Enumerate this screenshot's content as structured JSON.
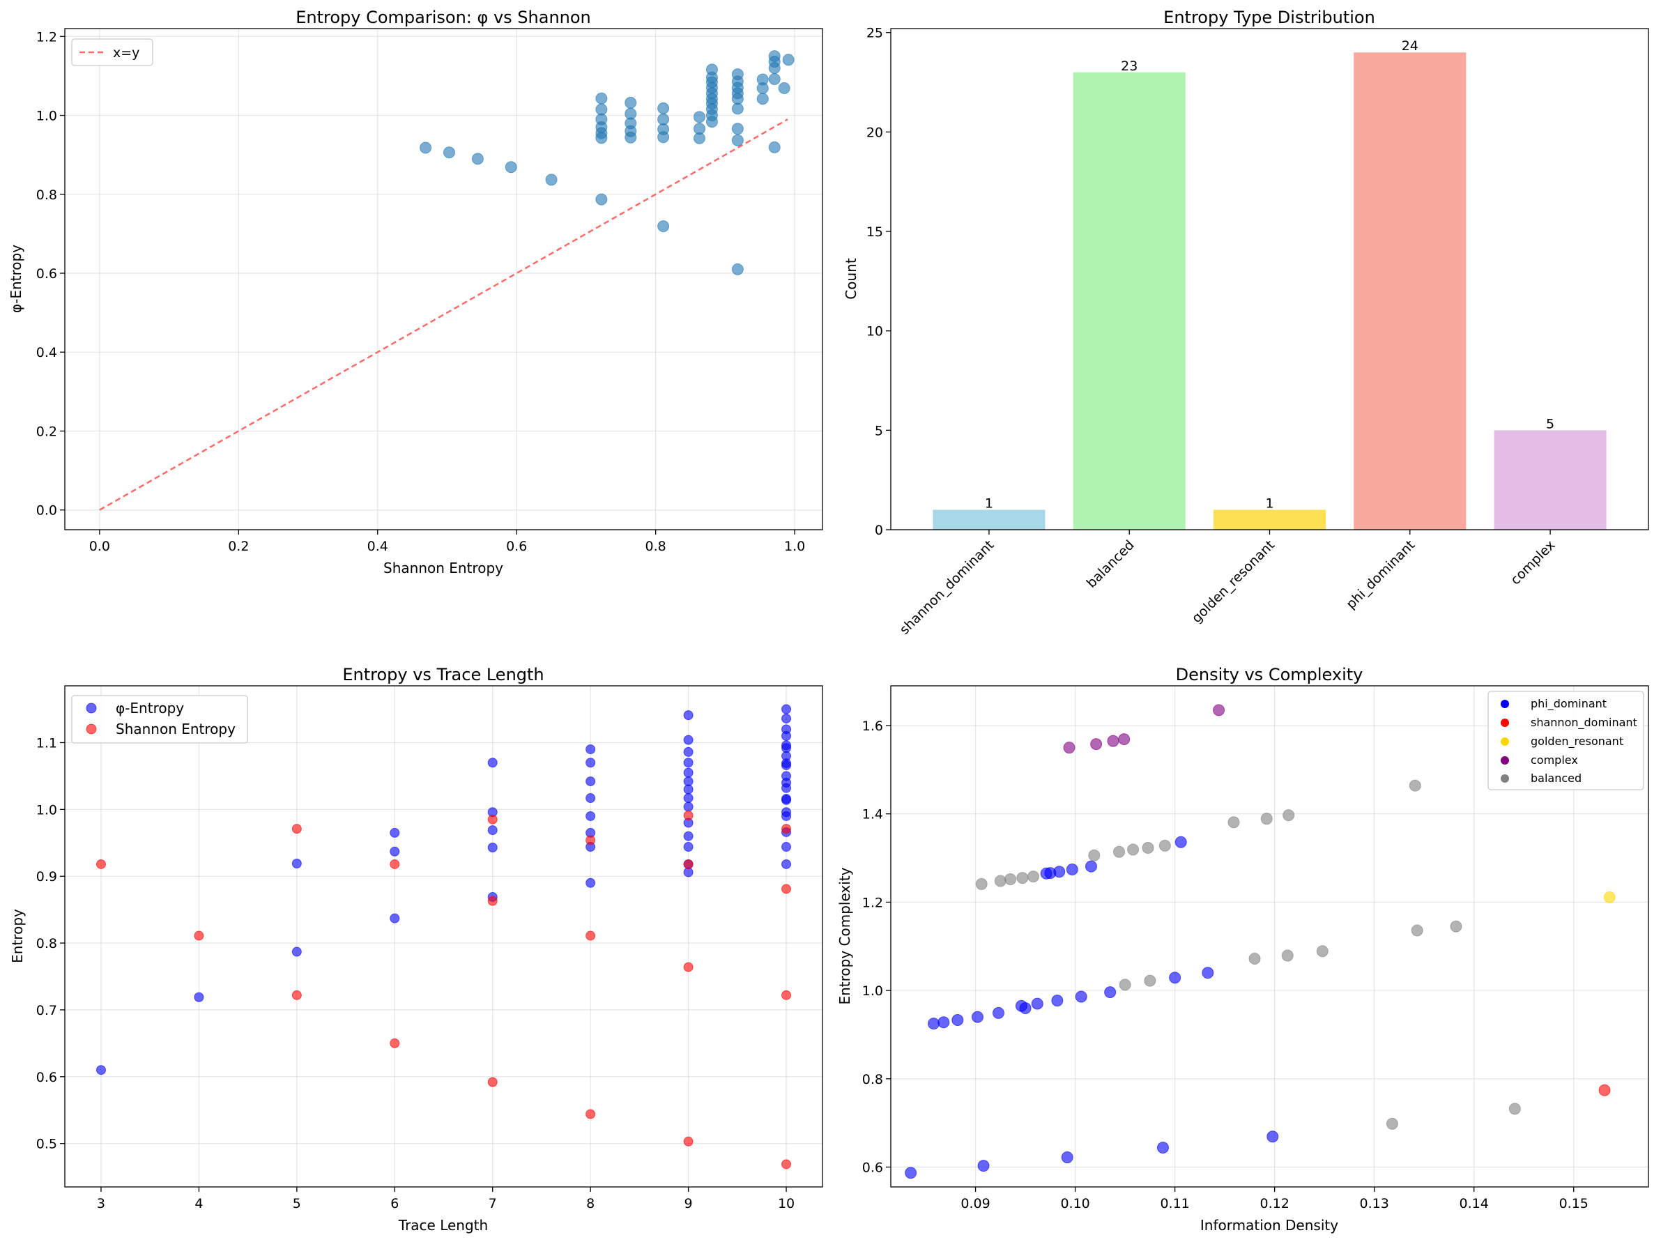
{
  "chart_data": [
    {
      "type": "scatter",
      "title": "Entropy Comparison: φ vs Shannon",
      "xlabel": "Shannon Entropy",
      "ylabel": "φ-Entropy",
      "xlim": [
        -0.05,
        1.04
      ],
      "ylim": [
        -0.05,
        1.22
      ],
      "xticks": [
        0.0,
        0.2,
        0.4,
        0.6,
        0.8,
        1.0
      ],
      "xtick_labels": [
        "0.0",
        "0.2",
        "0.4",
        "0.6",
        "0.8",
        "1.0"
      ],
      "yticks": [
        0.0,
        0.2,
        0.4,
        0.6,
        0.8,
        1.0,
        1.2
      ],
      "ytick_labels": [
        "0.0",
        "0.2",
        "0.4",
        "0.6",
        "0.8",
        "1.0",
        "1.2"
      ],
      "grid": true,
      "legend": [
        "x=y"
      ],
      "legend_loc": "upper-left",
      "colors": {
        "points": "#1f77b4",
        "reference": "#ff6b6b"
      },
      "reference_line": {
        "name": "x=y",
        "x": [
          0.0,
          0.99
        ],
        "y": [
          0.0,
          0.99
        ]
      },
      "points": [
        [
          0.469,
          0.918
        ],
        [
          0.503,
          0.906
        ],
        [
          0.544,
          0.89
        ],
        [
          0.592,
          0.869
        ],
        [
          0.65,
          0.837
        ],
        [
          0.722,
          1.043
        ],
        [
          0.722,
          1.015
        ],
        [
          0.722,
          0.99
        ],
        [
          0.722,
          0.97
        ],
        [
          0.722,
          0.955
        ],
        [
          0.722,
          0.943
        ],
        [
          0.722,
          0.787
        ],
        [
          0.764,
          1.032
        ],
        [
          0.764,
          1.004
        ],
        [
          0.764,
          0.98
        ],
        [
          0.764,
          0.96
        ],
        [
          0.764,
          0.944
        ],
        [
          0.811,
          1.018
        ],
        [
          0.811,
          0.99
        ],
        [
          0.811,
          0.965
        ],
        [
          0.811,
          0.945
        ],
        [
          0.811,
          0.719
        ],
        [
          0.863,
          0.996
        ],
        [
          0.863,
          0.966
        ],
        [
          0.863,
          0.942
        ],
        [
          0.881,
          1.116
        ],
        [
          0.881,
          1.096
        ],
        [
          0.881,
          1.084
        ],
        [
          0.881,
          1.07
        ],
        [
          0.881,
          1.056
        ],
        [
          0.881,
          1.042
        ],
        [
          0.881,
          1.03
        ],
        [
          0.881,
          1.016
        ],
        [
          0.881,
          1.0
        ],
        [
          0.881,
          0.984
        ],
        [
          0.918,
          1.104
        ],
        [
          0.918,
          1.086
        ],
        [
          0.918,
          1.07
        ],
        [
          0.918,
          1.056
        ],
        [
          0.918,
          1.042
        ],
        [
          0.918,
          1.017
        ],
        [
          0.918,
          0.966
        ],
        [
          0.918,
          0.937
        ],
        [
          0.918,
          0.61
        ],
        [
          0.954,
          1.091
        ],
        [
          0.954,
          1.069
        ],
        [
          0.954,
          1.042
        ],
        [
          0.971,
          1.15
        ],
        [
          0.971,
          1.136
        ],
        [
          0.971,
          1.12
        ],
        [
          0.971,
          1.092
        ],
        [
          0.971,
          0.919
        ],
        [
          0.985,
          1.069
        ],
        [
          0.991,
          1.141
        ]
      ]
    },
    {
      "type": "bar",
      "title": "Entropy Type Distribution",
      "xlabel": "",
      "ylabel": "Count",
      "ylim": [
        0,
        25.2
      ],
      "yticks": [
        0,
        5,
        10,
        15,
        20,
        25
      ],
      "ytick_labels": [
        "0",
        "5",
        "10",
        "15",
        "20",
        "25"
      ],
      "grid": false,
      "categories": [
        "shannon_dominant",
        "balanced",
        "golden_resonant",
        "phi_dominant",
        "complex"
      ],
      "values": [
        1,
        23,
        1,
        24,
        5
      ],
      "data_labels": [
        "1",
        "23",
        "1",
        "24",
        "5"
      ],
      "colors": [
        "#a6d8ea",
        "#b0f2b0",
        "#fde053",
        "#f8a89d",
        "#e4bde6"
      ]
    },
    {
      "type": "scatter",
      "title": "Entropy vs Trace Length",
      "xlabel": "Trace Length",
      "ylabel": "Entropy",
      "xlim": [
        2.63,
        10.37
      ],
      "ylim": [
        0.435,
        1.185
      ],
      "xticks": [
        3,
        4,
        5,
        6,
        7,
        8,
        9,
        10
      ],
      "xtick_labels": [
        "3",
        "4",
        "5",
        "6",
        "7",
        "8",
        "9",
        "10"
      ],
      "yticks": [
        0.5,
        0.6,
        0.7,
        0.8,
        0.9,
        1.0,
        1.1
      ],
      "ytick_labels": [
        "0.5",
        "0.6",
        "0.7",
        "0.8",
        "0.9",
        "1.0",
        "1.1"
      ],
      "grid": true,
      "legend_loc": "upper-left",
      "series": [
        {
          "name": "φ-Entropy",
          "color": "#0000ff",
          "points": [
            [
              3,
              0.61
            ],
            [
              4,
              0.719
            ],
            [
              5,
              0.919
            ],
            [
              5,
              0.787
            ],
            [
              6,
              0.965
            ],
            [
              6,
              0.937
            ],
            [
              6,
              0.837
            ],
            [
              7,
              1.07
            ],
            [
              7,
              0.996
            ],
            [
              7,
              0.969
            ],
            [
              7,
              0.943
            ],
            [
              7,
              0.869
            ],
            [
              8,
              1.09
            ],
            [
              8,
              1.07
            ],
            [
              8,
              1.042
            ],
            [
              8,
              1.017
            ],
            [
              8,
              0.99
            ],
            [
              8,
              0.965
            ],
            [
              8,
              0.944
            ],
            [
              8,
              0.89
            ],
            [
              9,
              1.141
            ],
            [
              9,
              1.104
            ],
            [
              9,
              1.086
            ],
            [
              9,
              1.07
            ],
            [
              9,
              1.055
            ],
            [
              9,
              1.042
            ],
            [
              9,
              1.03
            ],
            [
              9,
              1.017
            ],
            [
              9,
              1.004
            ],
            [
              9,
              0.98
            ],
            [
              9,
              0.96
            ],
            [
              9,
              0.944
            ],
            [
              9,
              0.918
            ],
            [
              9,
              0.906
            ],
            [
              10,
              1.15
            ],
            [
              10,
              1.136
            ],
            [
              10,
              1.12
            ],
            [
              10,
              1.11
            ],
            [
              10,
              1.096
            ],
            [
              10,
              1.092
            ],
            [
              10,
              1.08
            ],
            [
              10,
              1.069
            ],
            [
              10,
              1.066
            ],
            [
              10,
              1.05
            ],
            [
              10,
              1.04
            ],
            [
              10,
              1.032
            ],
            [
              10,
              1.016
            ],
            [
              10,
              1.014
            ],
            [
              10,
              0.996
            ],
            [
              10,
              0.99
            ],
            [
              10,
              0.966
            ],
            [
              10,
              0.944
            ],
            [
              10,
              0.918
            ]
          ]
        },
        {
          "name": "Shannon Entropy",
          "color": "#ff0000",
          "points": [
            [
              3,
              0.918
            ],
            [
              4,
              0.811
            ],
            [
              5,
              0.971
            ],
            [
              5,
              0.722
            ],
            [
              6,
              0.918
            ],
            [
              6,
              0.65
            ],
            [
              7,
              0.985
            ],
            [
              7,
              0.863
            ],
            [
              7,
              0.592
            ],
            [
              8,
              0.954
            ],
            [
              8,
              0.811
            ],
            [
              8,
              0.544
            ],
            [
              9,
              0.991
            ],
            [
              9,
              0.918
            ],
            [
              9,
              0.764
            ],
            [
              9,
              0.503
            ],
            [
              10,
              0.971
            ],
            [
              10,
              0.881
            ],
            [
              10,
              0.722
            ],
            [
              10,
              0.469
            ]
          ]
        }
      ]
    },
    {
      "type": "scatter",
      "title": "Density vs Complexity",
      "xlabel": "Information Density",
      "ylabel": "Entropy Complexity",
      "xlim": [
        0.0815,
        0.1575
      ],
      "ylim": [
        0.555,
        1.69
      ],
      "xticks": [
        0.09,
        0.1,
        0.11,
        0.12,
        0.13,
        0.14,
        0.15
      ],
      "xtick_labels": [
        "0.09",
        "0.10",
        "0.11",
        "0.12",
        "0.13",
        "0.14",
        "0.15"
      ],
      "yticks": [
        0.6,
        0.8,
        1.0,
        1.2,
        1.4,
        1.6
      ],
      "ytick_labels": [
        "0.6",
        "0.8",
        "1.0",
        "1.2",
        "1.4",
        "1.6"
      ],
      "grid": true,
      "legend_loc": "upper-right",
      "series": [
        {
          "name": "phi_dominant",
          "color": "#0000ff",
          "points": [
            [
              0.0835,
              0.587
            ],
            [
              0.0908,
              0.603
            ],
            [
              0.0992,
              0.622
            ],
            [
              0.1088,
              0.644
            ],
            [
              0.1198,
              0.669
            ],
            [
              0.0858,
              0.925
            ],
            [
              0.0868,
              0.928
            ],
            [
              0.0882,
              0.933
            ],
            [
              0.0902,
              0.94
            ],
            [
              0.0923,
              0.949
            ],
            [
              0.0946,
              0.965
            ],
            [
              0.095,
              0.96
            ],
            [
              0.0962,
              0.97
            ],
            [
              0.0982,
              0.977
            ],
            [
              0.1006,
              0.986
            ],
            [
              0.1035,
              0.996
            ],
            [
              0.11,
              1.029
            ],
            [
              0.1133,
              1.04
            ],
            [
              0.0971,
              1.265
            ],
            [
              0.0975,
              1.266
            ],
            [
              0.0984,
              1.269
            ],
            [
              0.0997,
              1.274
            ],
            [
              0.1016,
              1.281
            ],
            [
              0.1106,
              1.336
            ]
          ]
        },
        {
          "name": "shannon_dominant",
          "color": "#ff0000",
          "points": [
            [
              0.1531,
              0.774
            ]
          ]
        },
        {
          "name": "golden_resonant",
          "color": "#ffd700",
          "points": [
            [
              0.1536,
              1.211
            ]
          ]
        },
        {
          "name": "complex",
          "color": "#800080",
          "points": [
            [
              0.0994,
              1.55
            ],
            [
              0.1021,
              1.558
            ],
            [
              0.1038,
              1.565
            ],
            [
              0.1049,
              1.569
            ],
            [
              0.1144,
              1.635
            ]
          ]
        },
        {
          "name": "balanced",
          "color": "#808080",
          "points": [
            [
              0.0906,
              1.241
            ],
            [
              0.0925,
              1.248
            ],
            [
              0.0935,
              1.252
            ],
            [
              0.0947,
              1.255
            ],
            [
              0.0958,
              1.258
            ],
            [
              0.1019,
              1.306
            ],
            [
              0.1044,
              1.314
            ],
            [
              0.1058,
              1.319
            ],
            [
              0.1073,
              1.323
            ],
            [
              0.109,
              1.328
            ],
            [
              0.1159,
              1.381
            ],
            [
              0.1192,
              1.389
            ],
            [
              0.1214,
              1.397
            ],
            [
              0.1341,
              1.464
            ],
            [
              0.105,
              1.013
            ],
            [
              0.1075,
              1.022
            ],
            [
              0.118,
              1.072
            ],
            [
              0.1213,
              1.079
            ],
            [
              0.1248,
              1.089
            ],
            [
              0.1343,
              1.136
            ],
            [
              0.1382,
              1.145
            ],
            [
              0.1318,
              0.698
            ],
            [
              0.1441,
              0.732
            ]
          ]
        }
      ]
    }
  ]
}
